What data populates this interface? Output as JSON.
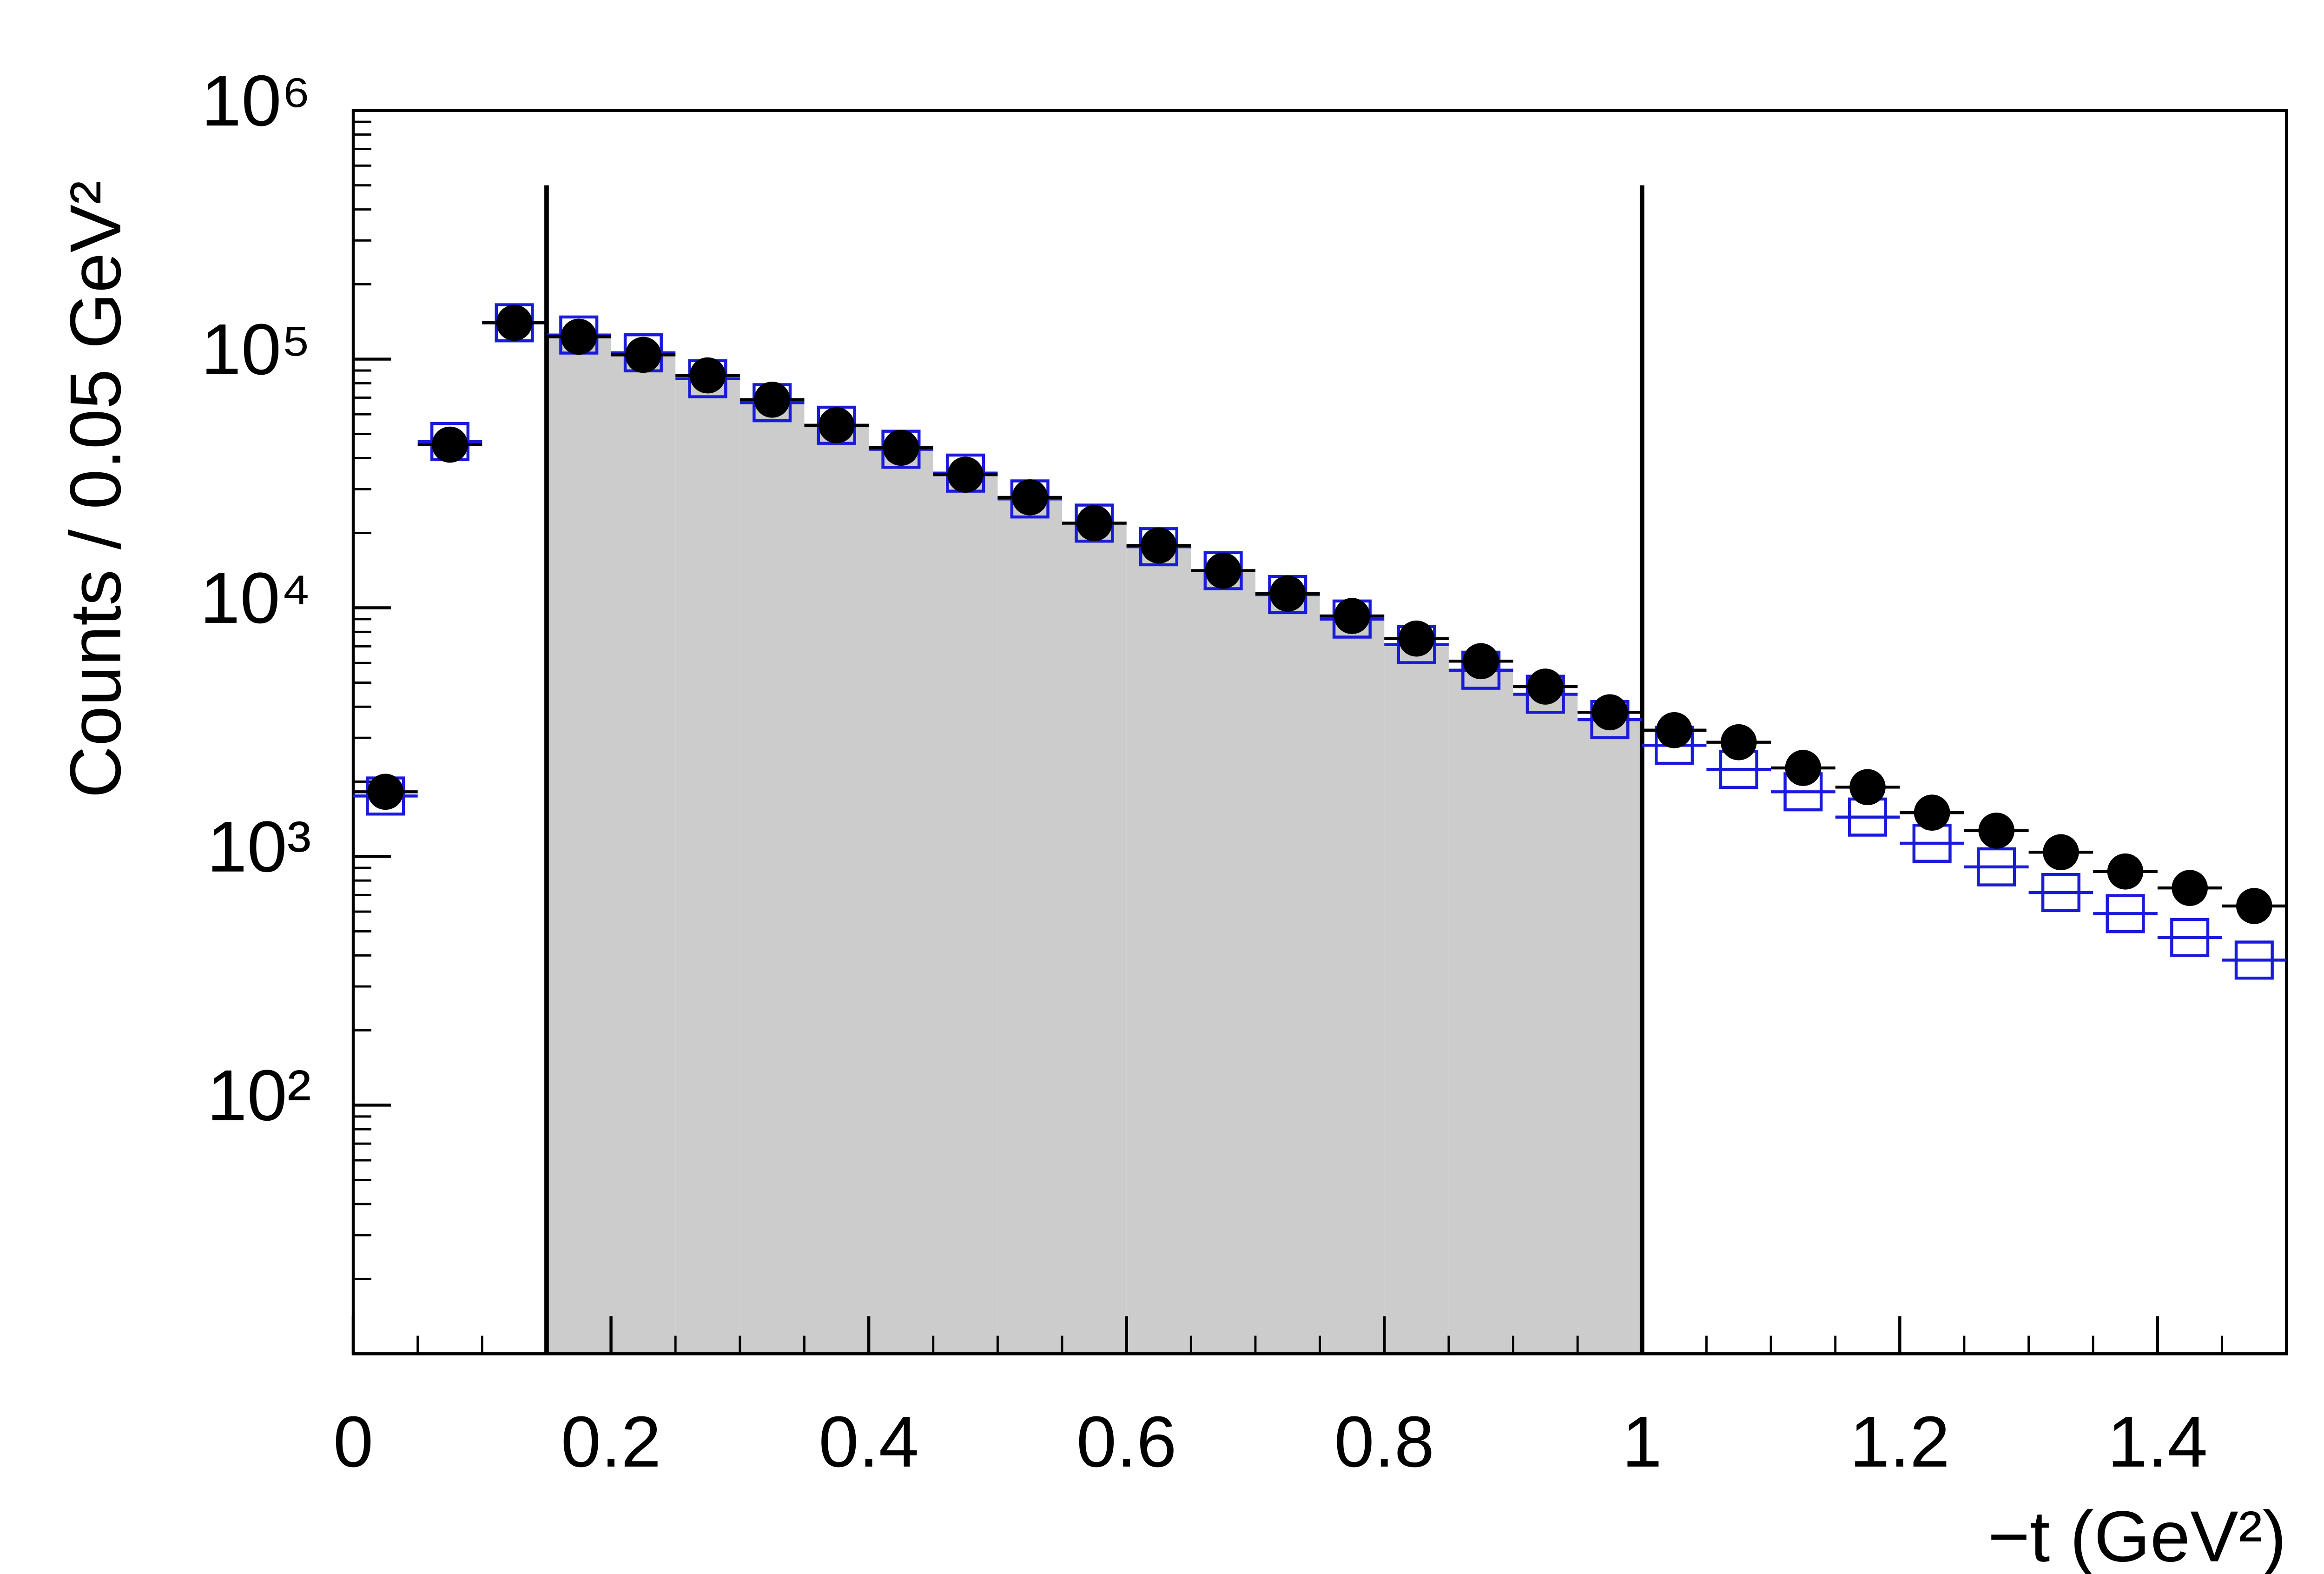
{
  "chart_data": {
    "type": "histogram",
    "x_label": "−t (GeV²)",
    "y_label": "Counts / 0.05 GeV²",
    "bins": [
      0,
      0.05,
      0.1,
      0.15,
      0.2,
      0.25,
      0.3,
      0.35,
      0.4,
      0.45,
      0.5,
      0.55,
      0.6,
      0.65,
      0.7,
      0.75,
      0.8,
      0.85,
      0.9,
      0.95,
      1.0,
      1.05,
      1.1,
      1.15,
      1.2,
      1.25,
      1.3,
      1.35,
      1.4,
      1.45,
      1.5
    ],
    "series": [
      {
        "marker": "open-square",
        "color": "#1a1adb",
        "values": [
          1750,
          46600,
          140000,
          125000,
          106000,
          83400,
          66800,
          54200,
          43400,
          34800,
          27400,
          21900,
          17600,
          14100,
          11300,
          9010,
          7110,
          5610,
          4490,
          3550,
          2800,
          2240,
          1820,
          1440,
          1130,
          908,
          716,
          589,
          472,
          383
        ]
      },
      {
        "marker": "filled-circle",
        "color": "#000000",
        "values": [
          1820,
          45300,
          140000,
          123000,
          104000,
          86000,
          68700,
          54200,
          44000,
          34300,
          27800,
          21900,
          17800,
          14100,
          11400,
          9270,
          7520,
          6100,
          4820,
          3800,
          3220,
          2880,
          2270,
          1900,
          1500,
          1270,
          1040,
          870,
          747,
          632
        ]
      }
    ],
    "selection": {
      "x": [
        0.15,
        1.0
      ],
      "line_top": 500000,
      "fill": "#cccccc",
      "line_color": "#000000"
    },
    "log_y": true,
    "xlim": [
      0,
      1.5
    ],
    "ylim": [
      10,
      1000000
    ],
    "xticks": [
      0,
      0.2,
      0.4,
      0.6,
      0.8,
      1,
      1.2,
      1.4
    ],
    "yticks": [
      {
        "value": 100,
        "label": "10²"
      },
      {
        "value": 1000,
        "label": "10³"
      },
      {
        "value": 10000,
        "label": "10⁴"
      },
      {
        "value": 100000,
        "label": "10⁵"
      },
      {
        "value": 1000000,
        "label": "10⁶"
      }
    ]
  }
}
